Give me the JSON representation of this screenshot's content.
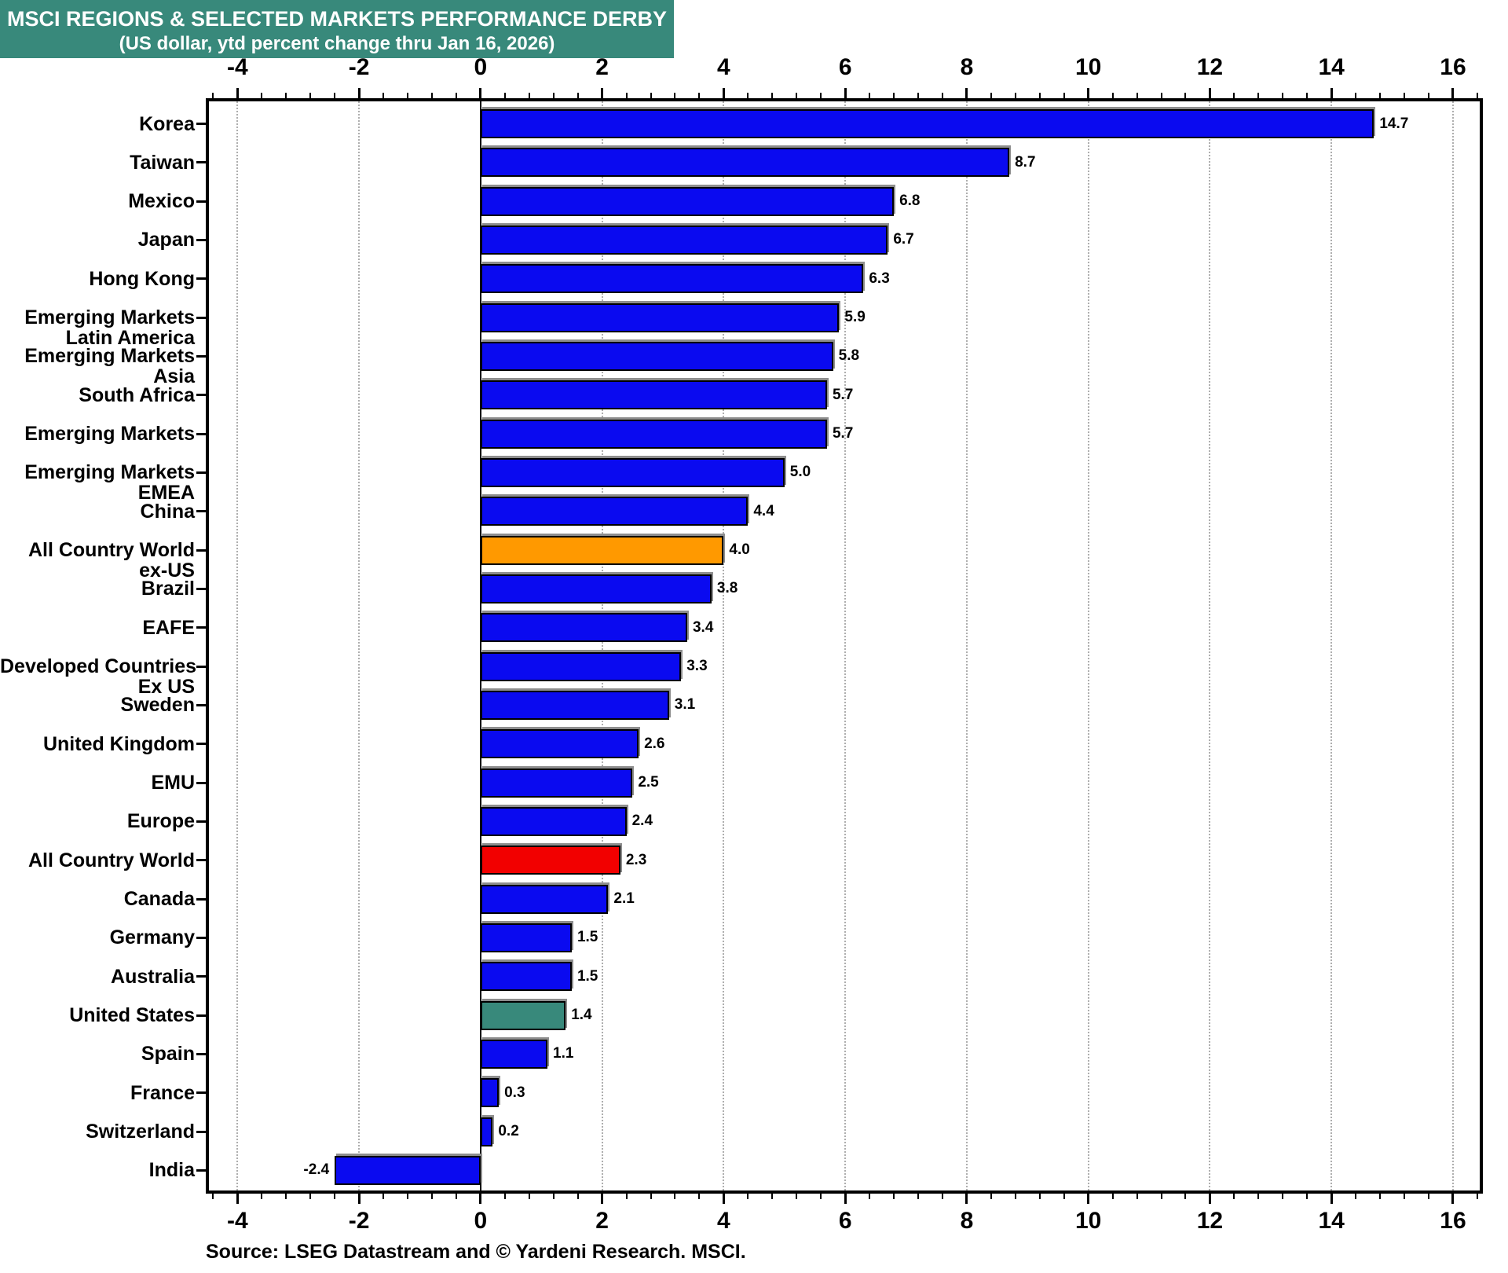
{
  "title": {
    "line1": "MSCI REGIONS & SELECTED MARKETS PERFORMANCE DERBY",
    "line2": "(US dollar, ytd percent change thru Jan 16, 2026)"
  },
  "source": "Source: LSEG Datastream and © Yardeni Research. MSCI.",
  "colors": {
    "title_bg": "#38897b",
    "title_text": "#ffffff",
    "bar_default": "#0a0af0",
    "bar_orange": "#ff9900",
    "bar_red": "#f20000",
    "bar_teal": "#38897b",
    "gridline": "#aeaeae",
    "axis": "#000000"
  },
  "chart_data": {
    "type": "bar",
    "orientation": "horizontal",
    "title": "MSCI REGIONS & SELECTED MARKETS PERFORMANCE DERBY",
    "subtitle": "(US dollar, ytd percent change thru Jan 16, 2026)",
    "value_unit": "ytd percent change",
    "x_axis": {
      "min": -4.47,
      "max": 16.44,
      "major_tick_labels": [
        -4,
        -2,
        0,
        2,
        4,
        6,
        8,
        10,
        12,
        14,
        16
      ],
      "minor_tick_step": 0.4,
      "grid": "dotted vertical lines at labeled ticks except 0; solid line at 0",
      "label_positions": [
        "top",
        "bottom"
      ]
    },
    "bars": [
      {
        "label_lines": [
          "Korea"
        ],
        "value": 14.7,
        "color_key": "default"
      },
      {
        "label_lines": [
          "Taiwan"
        ],
        "value": 8.7,
        "color_key": "default"
      },
      {
        "label_lines": [
          "Mexico"
        ],
        "value": 6.8,
        "color_key": "default"
      },
      {
        "label_lines": [
          "Japan"
        ],
        "value": 6.7,
        "color_key": "default"
      },
      {
        "label_lines": [
          "Hong Kong"
        ],
        "value": 6.3,
        "color_key": "default"
      },
      {
        "label_lines": [
          "Emerging Markets",
          "Latin America"
        ],
        "value": 5.9,
        "color_key": "default"
      },
      {
        "label_lines": [
          "Emerging Markets",
          "Asia"
        ],
        "value": 5.8,
        "color_key": "default"
      },
      {
        "label_lines": [
          "South Africa"
        ],
        "value": 5.7,
        "color_key": "default"
      },
      {
        "label_lines": [
          "Emerging Markets"
        ],
        "value": 5.7,
        "color_key": "default"
      },
      {
        "label_lines": [
          "Emerging Markets",
          "EMEA"
        ],
        "value": 5.0,
        "color_key": "default"
      },
      {
        "label_lines": [
          "China"
        ],
        "value": 4.4,
        "color_key": "default"
      },
      {
        "label_lines": [
          "All Country World",
          "ex-US"
        ],
        "value": 4.0,
        "color_key": "orange"
      },
      {
        "label_lines": [
          "Brazil"
        ],
        "value": 3.8,
        "color_key": "default"
      },
      {
        "label_lines": [
          "EAFE"
        ],
        "value": 3.4,
        "color_key": "default"
      },
      {
        "label_lines": [
          "Developed Countries",
          "Ex US"
        ],
        "value": 3.3,
        "color_key": "default"
      },
      {
        "label_lines": [
          "Sweden"
        ],
        "value": 3.1,
        "color_key": "default"
      },
      {
        "label_lines": [
          "United Kingdom"
        ],
        "value": 2.6,
        "color_key": "default"
      },
      {
        "label_lines": [
          "EMU"
        ],
        "value": 2.5,
        "color_key": "default"
      },
      {
        "label_lines": [
          "Europe"
        ],
        "value": 2.4,
        "color_key": "default"
      },
      {
        "label_lines": [
          "All Country World"
        ],
        "value": 2.3,
        "color_key": "red"
      },
      {
        "label_lines": [
          "Canada"
        ],
        "value": 2.1,
        "color_key": "default"
      },
      {
        "label_lines": [
          "Germany"
        ],
        "value": 1.5,
        "color_key": "default"
      },
      {
        "label_lines": [
          "Australia"
        ],
        "value": 1.5,
        "color_key": "default"
      },
      {
        "label_lines": [
          "United States"
        ],
        "value": 1.4,
        "color_key": "teal"
      },
      {
        "label_lines": [
          "Spain"
        ],
        "value": 1.1,
        "color_key": "default"
      },
      {
        "label_lines": [
          "France"
        ],
        "value": 0.3,
        "color_key": "default"
      },
      {
        "label_lines": [
          "Switzerland"
        ],
        "value": 0.2,
        "color_key": "default"
      },
      {
        "label_lines": [
          "India"
        ],
        "value": -2.4,
        "color_key": "default"
      }
    ],
    "source": "Source: LSEG Datastream and © Yardeni Research. MSCI."
  }
}
